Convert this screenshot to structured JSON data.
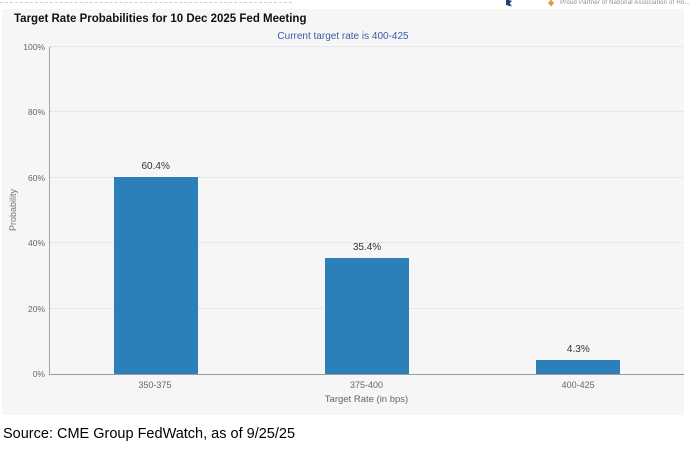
{
  "page": {
    "header": {
      "partial_text": "Proud Partner of National Association of Ho..."
    },
    "source_line": "Source: CME Group FedWatch, as of 9/25/25"
  },
  "chart_data": {
    "type": "bar",
    "title": "Target Rate Probabilities for 10 Dec 2025 Fed Meeting",
    "subtitle": "Current target rate is 400-425",
    "categories": [
      "350-375",
      "375-400",
      "400-425"
    ],
    "values": [
      60.4,
      35.4,
      4.3
    ],
    "value_labels": [
      "60.4%",
      "35.4%",
      "4.3%"
    ],
    "xlabel": "Target Rate (in bps)",
    "ylabel": "Probability",
    "ylim": [
      0,
      100
    ],
    "yticks": [
      0,
      20,
      40,
      60,
      80,
      100
    ],
    "ytick_labels": [
      "0%",
      "20%",
      "40%",
      "60%",
      "80%",
      "100%"
    ],
    "grid": "horizontal-dotted",
    "legend": "none",
    "bar_color": "#2d7fb9",
    "subtitle_color": "#3b5ca8",
    "plot_background": "#f6f6f7"
  }
}
